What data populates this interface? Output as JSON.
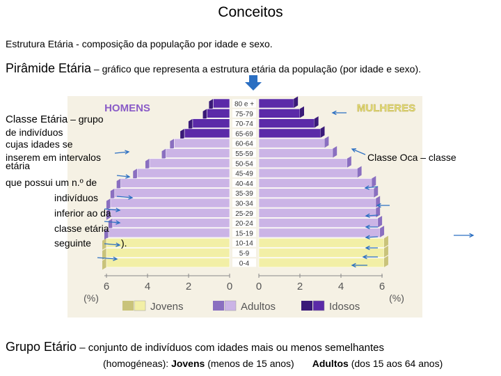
{
  "title": "Conceitos",
  "definitions": {
    "estrutura_term": "Estrutura Etária",
    "estrutura_text": " -  composição da população por idade e sexo.",
    "piramide_term": "Pirâmide Etária",
    "piramide_text": " – gráfico que representa a estrutura etária da população (por idade e sexo).",
    "classe_term": "Classe Etária",
    "classe_intro": " – grupo",
    "classe_lines": [
      "de indivíduos",
      "cujas idades se",
      "inserem em intervalos",
      "etária",
      "que possui um n.º de",
      "indivíduos",
      "inferior ao da",
      "classe etária",
      "seguinte",
      ")."
    ],
    "classe_oca": "Classe Oca – classe",
    "grupo_term": "Grupo Etário",
    "grupo_text": " – conjunto de indivíduos com idades mais ou menos semelhantes",
    "grupo_line2_pre": "(homogéneas): ",
    "jovens_term": "Jovens",
    "jovens_text": " (menos de 15 anos)",
    "adultos_term": "Adultos",
    "adultos_text": " (dos 15 aos 64 anos)"
  },
  "chart_data": {
    "type": "bar",
    "title": "",
    "left_label": "HOMENS",
    "right_label": "MULHERES",
    "categories": [
      "80 e +",
      "75-79",
      "70-74",
      "65-69",
      "60-64",
      "55-59",
      "50-54",
      "45-49",
      "40-44",
      "35-39",
      "30-34",
      "25-29",
      "20-24",
      "15-19",
      "10-14",
      "5-9",
      "0-4"
    ],
    "series": [
      {
        "name": "Homens",
        "values": [
          0.8,
          1.1,
          1.8,
          2.2,
          2.7,
          3.1,
          3.9,
          4.5,
          5.3,
          5.6,
          5.8,
          5.8,
          5.7,
          5.9,
          6.0,
          6.0,
          6.0
        ]
      },
      {
        "name": "Mulheres",
        "values": [
          1.7,
          2.0,
          2.7,
          3.0,
          3.2,
          3.6,
          4.3,
          4.8,
          5.5,
          5.6,
          5.7,
          5.7,
          5.8,
          5.9,
          6.1,
          6.1,
          6.1
        ]
      }
    ],
    "group_colors": {
      "Jovens": "#f2efa6",
      "Adultos": "#cbb4e6",
      "Idosos": "#5b2aa8"
    },
    "legend": [
      "Jovens",
      "Adultos",
      "Idosos"
    ],
    "x_ticks_left": [
      "6",
      "4",
      "2",
      "0"
    ],
    "x_ticks_right": [
      "0",
      "2",
      "4",
      "6"
    ],
    "xlabel_left": "(%)",
    "xlabel_right": "(%)",
    "xlim": [
      0,
      6
    ]
  }
}
